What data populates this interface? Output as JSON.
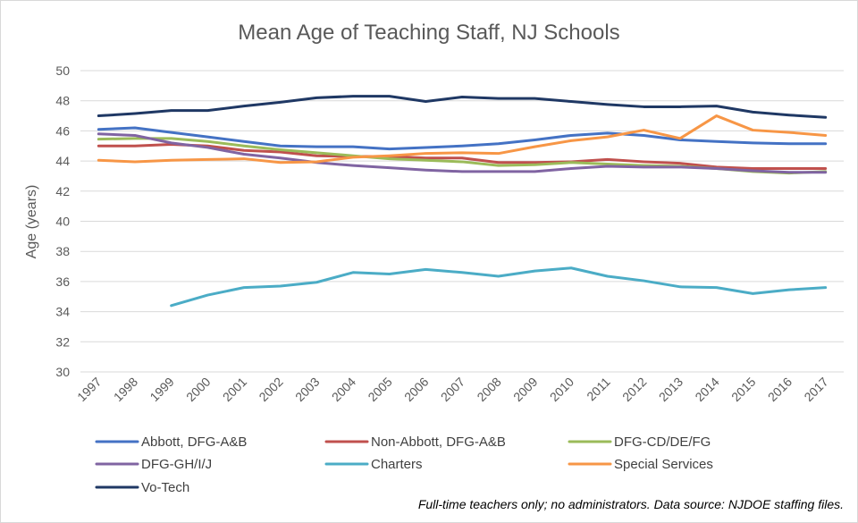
{
  "chart_data": {
    "type": "line",
    "title": "Mean Age of Teaching Staff, NJ Schools",
    "xlabel": "",
    "ylabel": "Age (years)",
    "ylim": [
      30,
      50
    ],
    "yticks": [
      30,
      32,
      34,
      36,
      38,
      40,
      42,
      44,
      46,
      48,
      50
    ],
    "categories": [
      "1997",
      "1998",
      "1999",
      "2000",
      "2001",
      "2002",
      "2003",
      "2004",
      "2005",
      "2006",
      "2007",
      "2008",
      "2009",
      "2010",
      "2011",
      "2012",
      "2013",
      "2014",
      "2015",
      "2016",
      "2017"
    ],
    "grid": true,
    "legend_position": "bottom",
    "note": "Full-time teachers only; no administrators. Data source: NJDOE staffing files.",
    "series": [
      {
        "name": "Abbott, DFG-A&B",
        "color": "#4472C4",
        "values": [
          46.1,
          46.2,
          45.9,
          45.6,
          45.3,
          45.0,
          44.95,
          44.95,
          44.8,
          44.9,
          45.0,
          45.15,
          45.4,
          45.7,
          45.85,
          45.7,
          45.4,
          45.3,
          45.2,
          45.15,
          45.15
        ]
      },
      {
        "name": "Non-Abbott, DFG-A&B",
        "color": "#C0504D",
        "values": [
          45.0,
          45.0,
          45.1,
          45.0,
          44.7,
          44.6,
          44.35,
          44.3,
          44.3,
          44.2,
          44.2,
          43.9,
          43.9,
          43.95,
          44.1,
          43.95,
          43.85,
          43.6,
          43.5,
          43.5,
          43.5
        ]
      },
      {
        "name": "DFG-CD/DE/FG",
        "color": "#9BBB59",
        "values": [
          45.45,
          45.5,
          45.5,
          45.3,
          45.0,
          44.75,
          44.55,
          44.35,
          44.15,
          44.05,
          43.95,
          43.7,
          43.75,
          43.9,
          43.8,
          43.7,
          43.65,
          43.5,
          43.3,
          43.2,
          43.3
        ]
      },
      {
        "name": "DFG-GH/I/J",
        "color": "#8064A2",
        "values": [
          45.8,
          45.7,
          45.2,
          44.9,
          44.45,
          44.2,
          43.9,
          43.7,
          43.55,
          43.4,
          43.3,
          43.3,
          43.3,
          43.5,
          43.65,
          43.6,
          43.6,
          43.5,
          43.35,
          43.25,
          43.25
        ]
      },
      {
        "name": "Charters",
        "color": "#4BACC6",
        "values": [
          null,
          null,
          34.4,
          35.1,
          35.6,
          35.7,
          35.95,
          36.6,
          36.5,
          36.8,
          36.6,
          36.35,
          36.7,
          36.9,
          36.35,
          36.05,
          35.65,
          35.6,
          35.2,
          35.45,
          35.6
        ]
      },
      {
        "name": "Special Services",
        "color": "#F79646",
        "values": [
          44.05,
          43.95,
          44.05,
          44.1,
          44.15,
          43.9,
          43.95,
          44.25,
          44.35,
          44.5,
          44.55,
          44.5,
          44.95,
          45.35,
          45.6,
          46.05,
          45.5,
          47.0,
          46.05,
          45.9,
          45.7
        ]
      },
      {
        "name": "Vo-Tech",
        "color": "#1F3864",
        "values": [
          47.0,
          47.15,
          47.35,
          47.35,
          47.65,
          47.9,
          48.2,
          48.3,
          48.3,
          47.95,
          48.25,
          48.15,
          48.15,
          47.95,
          47.75,
          47.6,
          47.6,
          47.65,
          47.25,
          47.05,
          46.9
        ]
      }
    ]
  }
}
